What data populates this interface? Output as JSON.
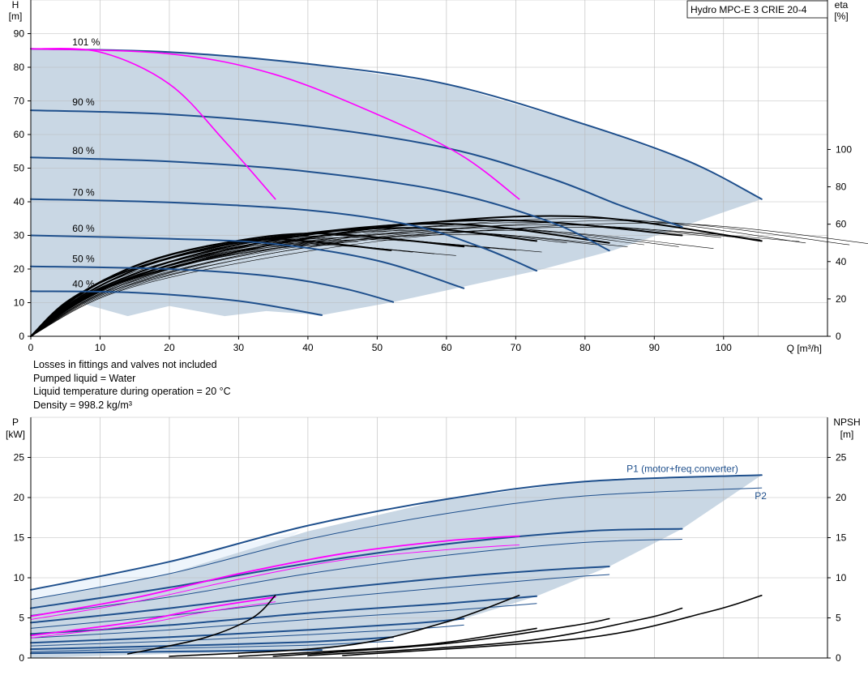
{
  "chart_data": [
    {
      "type": "line",
      "title": "Hydro MPC-E 3 CRIE 20-4",
      "ylabel_left": "H",
      "ylabel_left_unit": "[m]",
      "ylabel_right": "eta",
      "ylabel_right_unit": "[%]",
      "xlabel": "Q [m³/h]",
      "xlim": [
        0,
        115
      ],
      "ylim_left": [
        0,
        100
      ],
      "ylim_right": [
        0,
        180
      ],
      "x_ticks": [
        0,
        10,
        20,
        30,
        40,
        50,
        60,
        70,
        80,
        90,
        100
      ],
      "y_ticks_left": [
        0,
        10,
        20,
        30,
        40,
        50,
        60,
        70,
        80,
        90
      ],
      "y_ticks_right": [
        0,
        20,
        40,
        60,
        80,
        100
      ],
      "grid": true,
      "speed_labels": [
        {
          "text": "101 %",
          "q": 6,
          "h": 87.5
        },
        {
          "text": "90 %",
          "q": 6,
          "h": 69.6
        },
        {
          "text": "80 %",
          "q": 6,
          "h": 55.2
        },
        {
          "text": "70 %",
          "q": 6,
          "h": 42.8
        },
        {
          "text": "60 %",
          "q": 6,
          "h": 32.0
        },
        {
          "text": "50 %",
          "q": 6,
          "h": 23.0
        },
        {
          "text": "40 %",
          "q": 6,
          "h": 15.5
        }
      ],
      "head_curves_blue": [
        [
          [
            0,
            85.5
          ],
          [
            20,
            84.5
          ],
          [
            40,
            81
          ],
          [
            60,
            75
          ],
          [
            80,
            63
          ],
          [
            95,
            52
          ],
          [
            105.5,
            40.8
          ]
        ],
        [
          [
            0,
            67.2
          ],
          [
            20,
            66
          ],
          [
            40,
            62.5
          ],
          [
            60,
            56
          ],
          [
            75,
            47
          ],
          [
            85,
            39
          ],
          [
            94,
            32.5
          ]
        ],
        [
          [
            0,
            53.2
          ],
          [
            20,
            52
          ],
          [
            40,
            49
          ],
          [
            60,
            43
          ],
          [
            75,
            34
          ],
          [
            83.5,
            25.5
          ]
        ],
        [
          [
            0,
            40.8
          ],
          [
            20,
            39.8
          ],
          [
            40,
            37.5
          ],
          [
            55,
            33
          ],
          [
            65,
            26.5
          ],
          [
            73,
            19.5
          ]
        ],
        [
          [
            0,
            30
          ],
          [
            20,
            29
          ],
          [
            35,
            27.5
          ],
          [
            50,
            22.5
          ],
          [
            62.5,
            14.3
          ]
        ],
        [
          [
            0,
            20.8
          ],
          [
            20,
            20
          ],
          [
            35,
            17.8
          ],
          [
            45,
            14.3
          ],
          [
            52.3,
            10.2
          ]
        ],
        [
          [
            0,
            13.4
          ],
          [
            15,
            13
          ],
          [
            30,
            10.5
          ],
          [
            42,
            6.3
          ]
        ]
      ],
      "head_curves_magenta": [
        [
          [
            0,
            85.5
          ],
          [
            10,
            84.5
          ],
          [
            20,
            75
          ],
          [
            28,
            58
          ],
          [
            35.3,
            40.8
          ]
        ],
        [
          [
            0,
            85.5
          ],
          [
            20,
            84
          ],
          [
            35,
            78
          ],
          [
            50,
            66
          ],
          [
            62,
            54
          ],
          [
            70.5,
            40.8
          ]
        ]
      ],
      "efficiency_curves": [
        [
          [
            0,
            0
          ],
          [
            5,
            18
          ],
          [
            12,
            32
          ],
          [
            20,
            42
          ],
          [
            30,
            50
          ],
          [
            40,
            54
          ]
        ],
        [
          [
            0,
            0
          ],
          [
            6,
            20
          ],
          [
            14,
            36
          ],
          [
            24,
            47
          ],
          [
            35,
            52
          ],
          [
            52,
            46
          ]
        ],
        [
          [
            0,
            0
          ],
          [
            7,
            22
          ],
          [
            16,
            39
          ],
          [
            28,
            50
          ],
          [
            42,
            55
          ],
          [
            62.5,
            48
          ]
        ],
        [
          [
            0,
            0
          ],
          [
            8,
            23
          ],
          [
            20,
            42
          ],
          [
            35,
            53
          ],
          [
            55,
            58
          ],
          [
            73,
            51
          ]
        ],
        [
          [
            0,
            0
          ],
          [
            9,
            24
          ],
          [
            24,
            44
          ],
          [
            42,
            56
          ],
          [
            62,
            60
          ],
          [
            83.5,
            50
          ]
        ],
        [
          [
            0,
            0
          ],
          [
            10,
            25
          ],
          [
            28,
            46
          ],
          [
            48,
            58
          ],
          [
            70,
            62
          ],
          [
            94,
            54
          ]
        ],
        [
          [
            0,
            0
          ],
          [
            11,
            26
          ],
          [
            32,
            47
          ],
          [
            55,
            60
          ],
          [
            80,
            64
          ],
          [
            105.5,
            51
          ]
        ]
      ],
      "shaded_region": [
        [
          0,
          0
        ],
        [
          0,
          85.5
        ],
        [
          13,
          85
        ],
        [
          26,
          84
        ],
        [
          40,
          81
        ],
        [
          60,
          75
        ],
        [
          80,
          63
        ],
        [
          95,
          52
        ],
        [
          105.5,
          40.8
        ],
        [
          84,
          25.5
        ],
        [
          73,
          19.5
        ],
        [
          52.3,
          10.2
        ],
        [
          42,
          6.3
        ],
        [
          34,
          7.5
        ],
        [
          28,
          6
        ],
        [
          20,
          9
        ],
        [
          14,
          6
        ],
        [
          7,
          10
        ]
      ],
      "light_region": [
        [
          0,
          0
        ],
        [
          0,
          85.5
        ],
        [
          13,
          85
        ],
        [
          8,
          40
        ],
        [
          5,
          15
        ]
      ]
    },
    {
      "type": "line",
      "ylabel_left": "P",
      "ylabel_left_unit": "[kW]",
      "ylabel_right": "NPSH",
      "ylabel_right_unit": "[m]",
      "xlim": [
        0,
        115
      ],
      "ylim_left": [
        0,
        30
      ],
      "ylim_right": [
        0,
        30
      ],
      "y_ticks_left": [
        0,
        5,
        10,
        15,
        20,
        25
      ],
      "y_ticks_right": [
        0,
        5,
        10,
        15,
        20,
        25
      ],
      "grid": true,
      "series_labels": [
        {
          "text": "P1 (motor+freq.converter)",
          "q": 86,
          "p": 23.6
        },
        {
          "text": "P2",
          "q": 104.5,
          "p": 20.2
        }
      ],
      "power_curves_p1": [
        [
          [
            0,
            8.5
          ],
          [
            20,
            12
          ],
          [
            40,
            16.5
          ],
          [
            60,
            19.8
          ],
          [
            80,
            22
          ],
          [
            105.5,
            22.8
          ]
        ],
        [
          [
            0,
            6.2
          ],
          [
            20,
            8.8
          ],
          [
            40,
            11.8
          ],
          [
            60,
            14.2
          ],
          [
            80,
            15.8
          ],
          [
            94,
            16.1
          ]
        ],
        [
          [
            0,
            4.4
          ],
          [
            20,
            6.2
          ],
          [
            40,
            8.3
          ],
          [
            60,
            10
          ],
          [
            75,
            11
          ],
          [
            83.5,
            11.4
          ]
        ],
        [
          [
            0,
            3
          ],
          [
            20,
            4.1
          ],
          [
            40,
            5.6
          ],
          [
            60,
            6.8
          ],
          [
            73,
            7.7
          ]
        ],
        [
          [
            0,
            1.9
          ],
          [
            20,
            2.6
          ],
          [
            40,
            3.5
          ],
          [
            55,
            4.3
          ],
          [
            62.5,
            4.9
          ]
        ],
        [
          [
            0,
            1.1
          ],
          [
            20,
            1.5
          ],
          [
            40,
            2
          ],
          [
            52.3,
            2.6
          ]
        ],
        [
          [
            0,
            0.6
          ],
          [
            20,
            0.8
          ],
          [
            42,
            1
          ]
        ]
      ],
      "power_curves_p2": [
        [
          [
            0,
            7.3
          ],
          [
            20,
            10.5
          ],
          [
            40,
            14.8
          ],
          [
            60,
            18
          ],
          [
            80,
            20.2
          ],
          [
            105.5,
            21.2
          ]
        ],
        [
          [
            0,
            5.3
          ],
          [
            20,
            7.6
          ],
          [
            40,
            10.5
          ],
          [
            60,
            12.8
          ],
          [
            80,
            14.4
          ],
          [
            94,
            14.8
          ]
        ],
        [
          [
            0,
            3.7
          ],
          [
            20,
            5.3
          ],
          [
            40,
            7.2
          ],
          [
            60,
            8.8
          ],
          [
            75,
            9.9
          ],
          [
            83.5,
            10.4
          ]
        ],
        [
          [
            0,
            2.5
          ],
          [
            20,
            3.5
          ],
          [
            40,
            4.8
          ],
          [
            60,
            5.9
          ],
          [
            73,
            6.8
          ]
        ],
        [
          [
            0,
            1.5
          ],
          [
            20,
            2.1
          ],
          [
            40,
            2.9
          ],
          [
            55,
            3.6
          ],
          [
            62.5,
            4.1
          ]
        ],
        [
          [
            0,
            0.8
          ],
          [
            20,
            1.2
          ],
          [
            40,
            1.6
          ],
          [
            52.3,
            2.1
          ]
        ]
      ],
      "power_curves_magenta": [
        [
          [
            0,
            5.2
          ],
          [
            15,
            7.5
          ],
          [
            30,
            10.5
          ],
          [
            45,
            13
          ],
          [
            60,
            14.6
          ],
          [
            70.5,
            15.2
          ]
        ],
        [
          [
            0,
            4.8
          ],
          [
            15,
            7
          ],
          [
            30,
            9.8
          ],
          [
            45,
            12.2
          ],
          [
            60,
            13.5
          ],
          [
            70.5,
            14.1
          ]
        ],
        [
          [
            0,
            2.8
          ],
          [
            15,
            4.5
          ],
          [
            25,
            6.2
          ],
          [
            35.3,
            7.6
          ]
        ],
        [
          [
            0,
            2.5
          ],
          [
            15,
            4.1
          ],
          [
            25,
            5.7
          ],
          [
            35.3,
            7
          ]
        ]
      ],
      "npsh_curves": [
        [
          [
            14,
            0.5
          ],
          [
            25,
            2.5
          ],
          [
            32,
            5
          ],
          [
            35.3,
            7.8
          ]
        ],
        [
          [
            20,
            0.2
          ],
          [
            45,
            1.5
          ],
          [
            60,
            4.5
          ],
          [
            70.5,
            7.8
          ]
        ],
        [
          [
            30,
            0.2
          ],
          [
            55,
            1.5
          ],
          [
            68,
            3
          ],
          [
            73,
            3.7
          ]
        ],
        [
          [
            35,
            0.2
          ],
          [
            60,
            1.8
          ],
          [
            78,
            4
          ],
          [
            83.5,
            4.9
          ]
        ],
        [
          [
            40,
            0.3
          ],
          [
            70,
            2
          ],
          [
            88,
            4.8
          ],
          [
            94,
            6.2
          ]
        ],
        [
          [
            45,
            0.3
          ],
          [
            80,
            2.5
          ],
          [
            98,
            5.8
          ],
          [
            105.5,
            7.8
          ]
        ]
      ],
      "shaded_region": [
        [
          0,
          0
        ],
        [
          0,
          7.3
        ],
        [
          20,
          10.5
        ],
        [
          40,
          15.8
        ],
        [
          60,
          19.8
        ],
        [
          80,
          22
        ],
        [
          105.5,
          22.8
        ],
        [
          94,
          16.1
        ],
        [
          83.5,
          11.4
        ],
        [
          73,
          7.7
        ],
        [
          62.5,
          4.9
        ],
        [
          52.3,
          2.6
        ],
        [
          42,
          1
        ],
        [
          20,
          0.5
        ]
      ],
      "light_region": [
        [
          0,
          0
        ],
        [
          0,
          8.5
        ],
        [
          20,
          12
        ],
        [
          39,
          15.9
        ],
        [
          24,
          7.8
        ],
        [
          8,
          1
        ]
      ]
    }
  ],
  "notes": [
    "Losses in fittings and valves not included",
    "Pumped liquid = Water",
    "Liquid temperature during operation = 20 °C",
    "Density = 998.2 kg/m³"
  ],
  "colors": {
    "blue": "#1e4f8c",
    "magenta": "#ff00ff",
    "black": "#000000",
    "shade": "#c9d7e4",
    "light_shade": "#eef5fc",
    "grid": "#b9b9b9"
  }
}
